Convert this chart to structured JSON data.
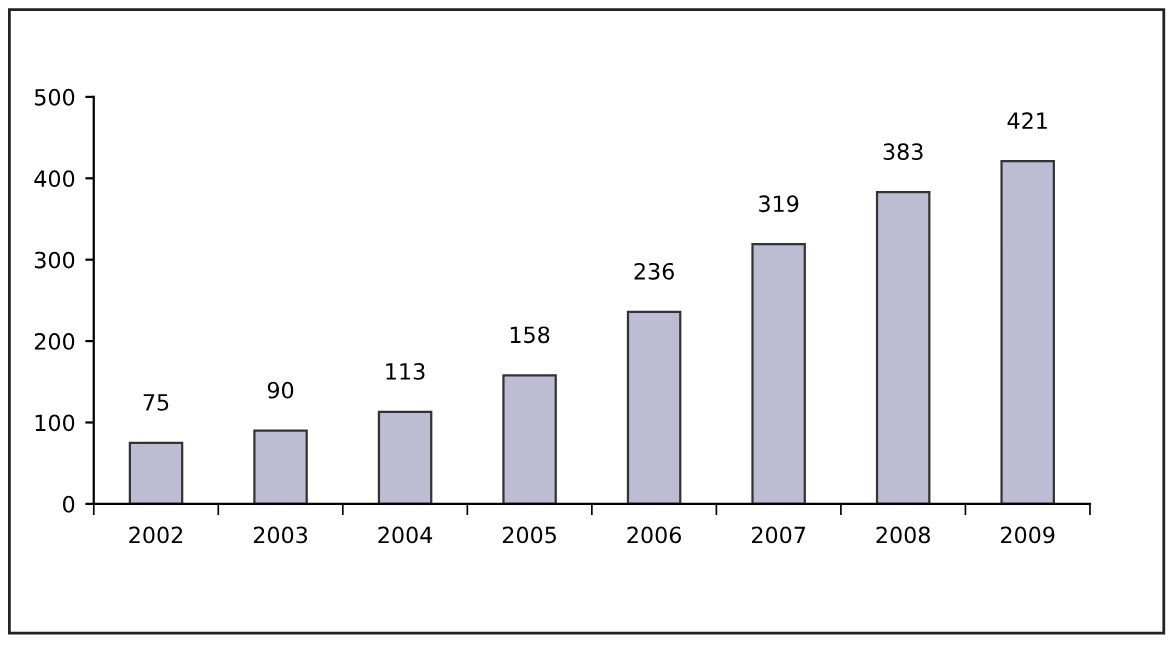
{
  "chart_data": {
    "type": "bar",
    "categories": [
      "2002",
      "2003",
      "2004",
      "2005",
      "2006",
      "2007",
      "2008",
      "2009"
    ],
    "values": [
      75,
      90,
      113,
      158,
      236,
      319,
      383,
      421
    ],
    "color": "#bcbcd2",
    "ylim": [
      0,
      500
    ],
    "yticks": [
      0,
      100,
      200,
      300,
      400,
      500
    ],
    "data_labels": true,
    "grid": false,
    "legend": false
  }
}
